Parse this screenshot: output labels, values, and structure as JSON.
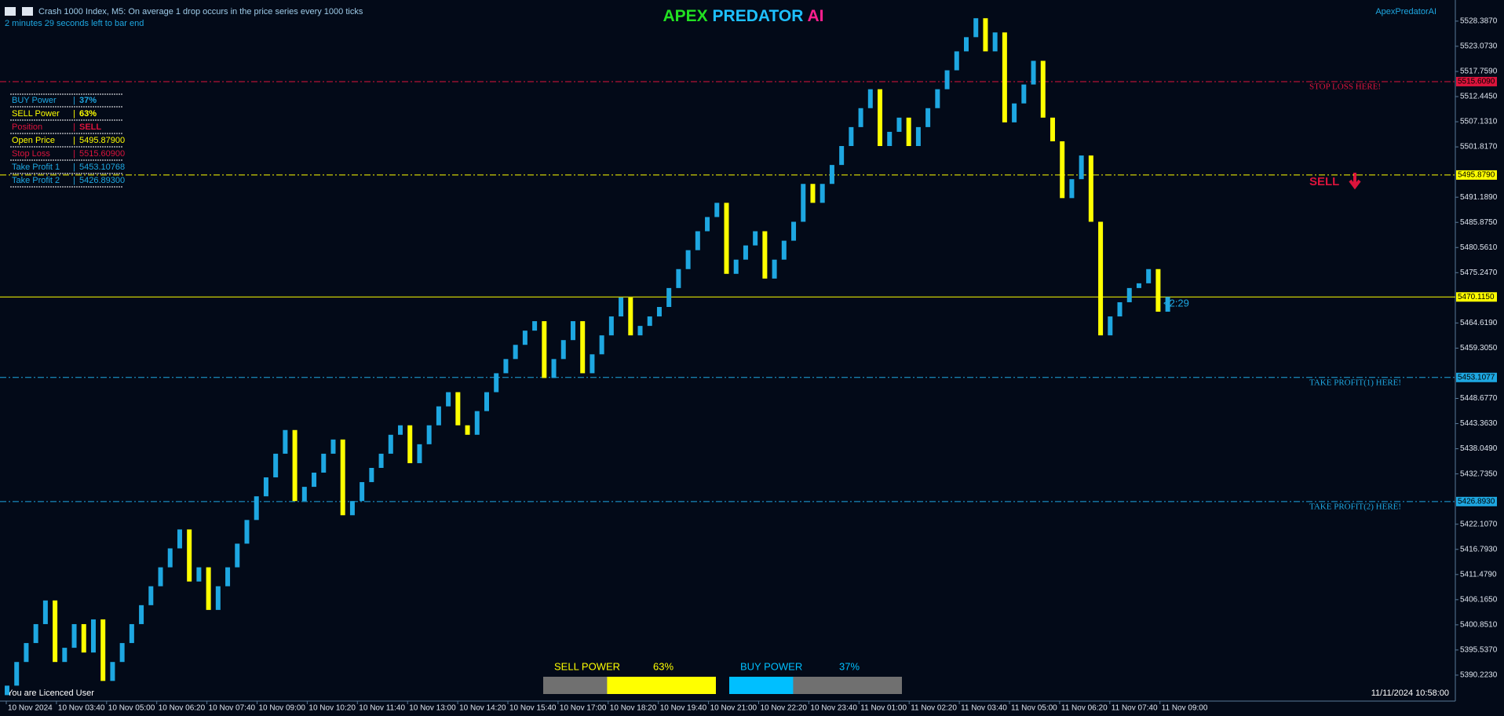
{
  "chart_data": {
    "type": "candlestick",
    "symbol_info": "Crash 1000 Index, M5:  On average 1 drop occurs in the price series every 1000 ticks",
    "timer_info": "2 minutes 29 seconds left to bar end",
    "title_parts": [
      {
        "text": "APEX",
        "color": "#22e022"
      },
      {
        "text": "PREDATOR",
        "color": "#1ec0ff"
      },
      {
        "text": "AI",
        "color": "#ff1f8f"
      }
    ],
    "expert_name": "ApexPredatorAI",
    "up_color": "#1ea7e1",
    "down_color": "#ffff00",
    "open": 5386,
    "close": [
      5388,
      5393,
      5397,
      5401,
      5406,
      5393,
      5396,
      5401,
      5395,
      5402,
      5389,
      5393,
      5397,
      5401,
      5405,
      5409,
      5413,
      5417,
      5421,
      5410,
      5413,
      5404,
      5409,
      5413,
      5418,
      5423,
      5428,
      5432,
      5437,
      5442,
      5427,
      5430,
      5433,
      5437,
      5440,
      5424,
      5427,
      5431,
      5434,
      5437,
      5441,
      5443,
      5435,
      5439,
      5443,
      5447,
      5450,
      5443,
      5441,
      5446,
      5450,
      5454,
      5457,
      5460,
      5463,
      5465,
      5453,
      5457,
      5461,
      5465,
      5454,
      5458,
      5462,
      5466,
      5470,
      5462,
      5464,
      5466,
      5468,
      5472,
      5476,
      5480,
      5484,
      5487,
      5490,
      5475,
      5478,
      5481,
      5484,
      5474,
      5478,
      5482,
      5486,
      5494,
      5490,
      5494,
      5498,
      5502,
      5506,
      5510,
      5514,
      5502,
      5505,
      5508,
      5502,
      5506,
      5510,
      5514,
      5518,
      5522,
      5525,
      5529,
      5522,
      5526,
      5507,
      5511,
      5515,
      5520,
      5508,
      5503,
      5491,
      5495,
      5500,
      5486,
      5462,
      5466,
      5469,
      5472,
      5473,
      5476,
      5467,
      5470.115
    ],
    "ylim": [
      5384.74,
      5532.85
    ],
    "yticks": [
      {
        "value": 5528.387,
        "label": "5528.3870"
      },
      {
        "value": 5523.073,
        "label": "5523.0730"
      },
      {
        "value": 5517.759,
        "label": "5517.7590"
      },
      {
        "value": 5512.445,
        "label": "5512.4450"
      },
      {
        "value": 5507.131,
        "label": "5507.1310"
      },
      {
        "value": 5501.817,
        "label": "5501.8170"
      },
      {
        "value": 5491.189,
        "label": "5491.1890"
      },
      {
        "value": 5485.875,
        "label": "5485.8750"
      },
      {
        "value": 5480.561,
        "label": "5480.5610"
      },
      {
        "value": 5475.247,
        "label": "5475.2470"
      },
      {
        "value": 5464.619,
        "label": "5464.6190"
      },
      {
        "value": 5459.305,
        "label": "5459.3050"
      },
      {
        "value": 5448.677,
        "label": "5448.6770"
      },
      {
        "value": 5443.363,
        "label": "5443.3630"
      },
      {
        "value": 5438.049,
        "label": "5438.0490"
      },
      {
        "value": 5432.735,
        "label": "5432.7350"
      },
      {
        "value": 5422.107,
        "label": "5422.1070"
      },
      {
        "value": 5416.793,
        "label": "5416.7930"
      },
      {
        "value": 5411.479,
        "label": "5411.4790"
      },
      {
        "value": 5406.165,
        "label": "5406.1650"
      },
      {
        "value": 5400.851,
        "label": "5400.8510"
      },
      {
        "value": 5395.537,
        "label": "5395.5370"
      },
      {
        "value": 5390.223,
        "label": "5390.2230"
      }
    ],
    "x_labels": [
      "10 Nov 2024",
      "10 Nov 03:40",
      "10 Nov 05:00",
      "10 Nov 06:20",
      "10 Nov 07:40",
      "10 Nov 09:00",
      "10 Nov 10:20",
      "10 Nov 11:40",
      "10 Nov 13:00",
      "10 Nov 14:20",
      "10 Nov 15:40",
      "10 Nov 17:00",
      "10 Nov 18:20",
      "10 Nov 19:40",
      "10 Nov 21:00",
      "10 Nov 22:20",
      "10 Nov 23:40",
      "11 Nov 01:00",
      "11 Nov 02:20",
      "11 Nov 03:40",
      "11 Nov 05:00",
      "11 Nov 06:20",
      "11 Nov 07:40",
      "11 Nov 09:00"
    ],
    "levels": [
      {
        "value": 5515.609,
        "label": "5515.6090",
        "text": "STOP LOSS HERE!",
        "color": "#dc143c",
        "dash": true
      },
      {
        "value": 5495.879,
        "label": "5495.8790",
        "color": "#ffff00",
        "dash": true
      },
      {
        "value": 5470.115,
        "label": "5470.1150",
        "color": "#ffff00",
        "dash": false
      },
      {
        "value": 5453.1077,
        "label": "5453.1077",
        "text": "TAKE PROFIT(1) HERE!",
        "color": "#1ea7e1",
        "dash": true
      },
      {
        "value": 5426.893,
        "label": "5426.8930",
        "text": "TAKE PROFIT(2) HERE!",
        "color": "#1ea7e1",
        "dash": true
      }
    ],
    "signal": "SELL",
    "countdown": "<2:29",
    "info_table": {
      "separator": "|",
      "rows": [
        {
          "label": "BUY Power",
          "value": "37%",
          "color": "#1ea7e1",
          "bold": true
        },
        {
          "label": "SELL Power",
          "value": "63%",
          "color": "#ffff00",
          "bold": true
        },
        {
          "label": "Position",
          "value": "SELL",
          "color": "#dc143c",
          "bold": true
        },
        {
          "label": "Open Price",
          "value": "5495.87900",
          "color": "#ffff00",
          "bold": false
        },
        {
          "label": "Stop Loss",
          "value": "5515.60900",
          "color": "#dc143c",
          "bold": false
        },
        {
          "label": "Take Profit 1",
          "value": "5453.10768",
          "color": "#1ea7e1",
          "bold": false
        },
        {
          "label": "Take Profit 2",
          "value": "5426.89300",
          "color": "#1ea7e1",
          "bold": false
        }
      ]
    },
    "power": [
      {
        "label": "SELL POWER",
        "value": 63,
        "value_label": "63%",
        "color": "#ffff00",
        "fill_from": "right"
      },
      {
        "label": "BUY POWER",
        "value": 37,
        "value_label": "37%",
        "color": "#00bfff",
        "fill_from": "left"
      }
    ],
    "licence": "You are Licenced User",
    "server_time": "11/11/2024 10:58:00"
  }
}
